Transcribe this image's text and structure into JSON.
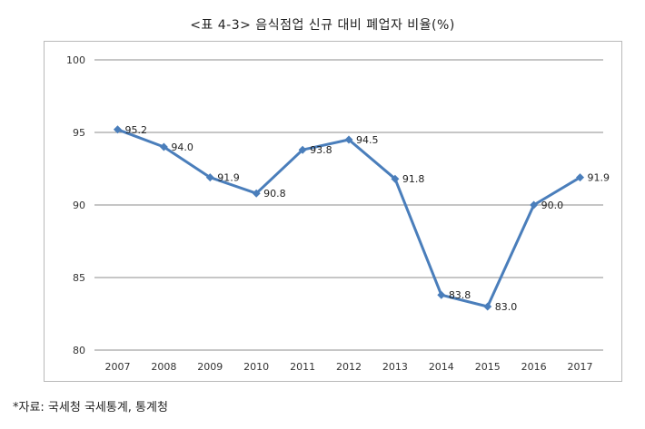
{
  "title": "<표 4-3> 음식점업 신규 대비 폐업자 비율(%)",
  "source": "*자료: 국세청 국세통계, 통계청",
  "chart_data": {
    "type": "line",
    "title": "<표 4-3> 음식점업 신규 대비 폐업자 비율(%)",
    "xlabel": "",
    "ylabel": "",
    "categories": [
      "2007",
      "2008",
      "2009",
      "2010",
      "2011",
      "2012",
      "2013",
      "2014",
      "2015",
      "2016",
      "2017"
    ],
    "values": [
      95.2,
      94.0,
      91.9,
      90.8,
      93.8,
      94.5,
      91.8,
      83.8,
      83.0,
      90.0,
      91.9
    ],
    "data_labels": [
      "95.2",
      "94.0",
      "91.9",
      "90.8",
      "93.8",
      "94.5",
      "91.8",
      "83.8",
      "83.0",
      "90.0",
      "91.9"
    ],
    "ylim": [
      80,
      100
    ],
    "yticks": [
      80,
      85,
      90,
      95,
      100
    ],
    "grid": true,
    "legend": "none",
    "color": "#4a7ebb",
    "gridColor": "#8c8c8c"
  }
}
